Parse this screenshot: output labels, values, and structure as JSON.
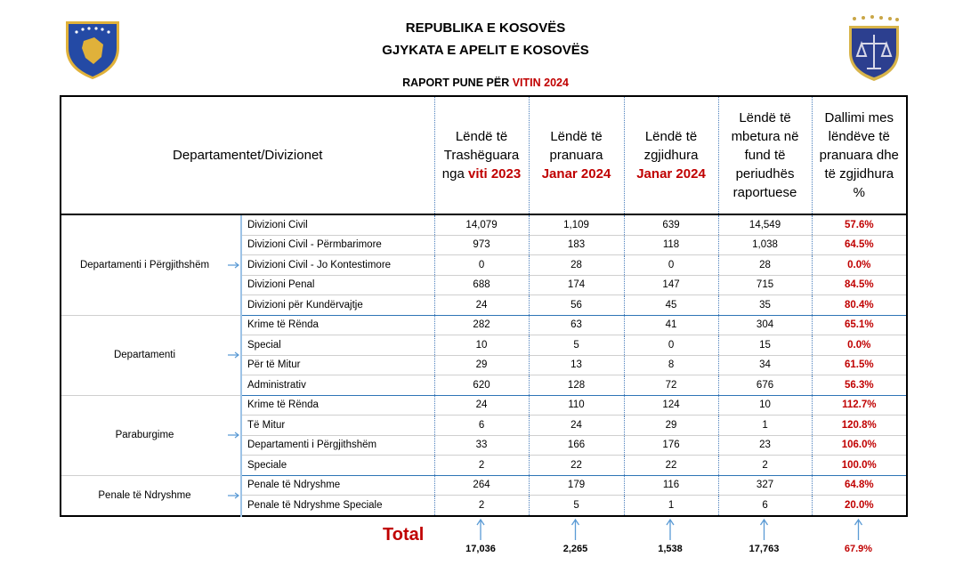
{
  "header": {
    "line1": "REPUBLIKA E KOSOVËS",
    "line2": "GJYKATA E APELIT E KOSOVËS",
    "report_title": "RAPORT PUNE PËR",
    "report_year": "VITIN 2024"
  },
  "table": {
    "first_column": "Departamentet/Divizionet",
    "columns": [
      {
        "text": "Lëndë të Trashëguara nga",
        "highlight": "viti 2023"
      },
      {
        "text": "Lëndë të pranuara",
        "highlight": "Janar 2024"
      },
      {
        "text": "Lëndë të zgjidhura",
        "highlight": "Janar 2024"
      },
      {
        "text": "Lëndë të mbetura në fund të periudhës raportuese"
      },
      {
        "text": "Dallimi mes lëndëve të pranuara dhe të zgjidhura %"
      }
    ],
    "groups": [
      {
        "name": "Departamenti i Përgjithshëm",
        "rows": [
          {
            "name": "Divizioni Civil",
            "values": [
              "14,079",
              "1,109",
              "639",
              "14,549",
              "57.6%"
            ]
          },
          {
            "name": "Divizioni Civil - Përmbarimore",
            "values": [
              "973",
              "183",
              "118",
              "1,038",
              "64.5%"
            ]
          },
          {
            "name": "Divizioni Civil - Jo Kontestimore",
            "values": [
              "0",
              "28",
              "0",
              "28",
              "0.0%"
            ]
          },
          {
            "name": "Divizioni Penal",
            "values": [
              "688",
              "174",
              "147",
              "715",
              "84.5%"
            ]
          },
          {
            "name": "Divizioni për Kundërvajtje",
            "values": [
              "24",
              "56",
              "45",
              "35",
              "80.4%"
            ]
          }
        ]
      },
      {
        "name": "Departamenti",
        "rows": [
          {
            "name": "Krime të Rënda",
            "values": [
              "282",
              "63",
              "41",
              "304",
              "65.1%"
            ]
          },
          {
            "name": "Special",
            "values": [
              "10",
              "5",
              "0",
              "15",
              "0.0%"
            ]
          },
          {
            "name": "Për të Mitur",
            "values": [
              "29",
              "13",
              "8",
              "34",
              "61.5%"
            ]
          },
          {
            "name": "Administrativ",
            "values": [
              "620",
              "128",
              "72",
              "676",
              "56.3%"
            ]
          }
        ]
      },
      {
        "name": "Paraburgime",
        "rows": [
          {
            "name": "Krime të Rënda",
            "values": [
              "24",
              "110",
              "124",
              "10",
              "112.7%"
            ]
          },
          {
            "name": "Të Mitur",
            "values": [
              "6",
              "24",
              "29",
              "1",
              "120.8%"
            ]
          },
          {
            "name": "Departamenti i Përgjithshëm",
            "values": [
              "33",
              "166",
              "176",
              "23",
              "106.0%"
            ]
          },
          {
            "name": "Speciale",
            "values": [
              "2",
              "22",
              "22",
              "2",
              "100.0%"
            ]
          }
        ]
      },
      {
        "name": "Penale të Ndryshme",
        "rows": [
          {
            "name": "Penale të Ndryshme",
            "values": [
              "264",
              "179",
              "116",
              "327",
              "64.8%"
            ]
          },
          {
            "name": "Penale të Ndryshme Speciale",
            "values": [
              "2",
              "5",
              "1",
              "6",
              "20.0%"
            ]
          }
        ]
      }
    ]
  },
  "totals": {
    "label": "Total",
    "values": [
      "17,036",
      "2,265",
      "1,538",
      "17,763",
      "67.9%"
    ]
  }
}
